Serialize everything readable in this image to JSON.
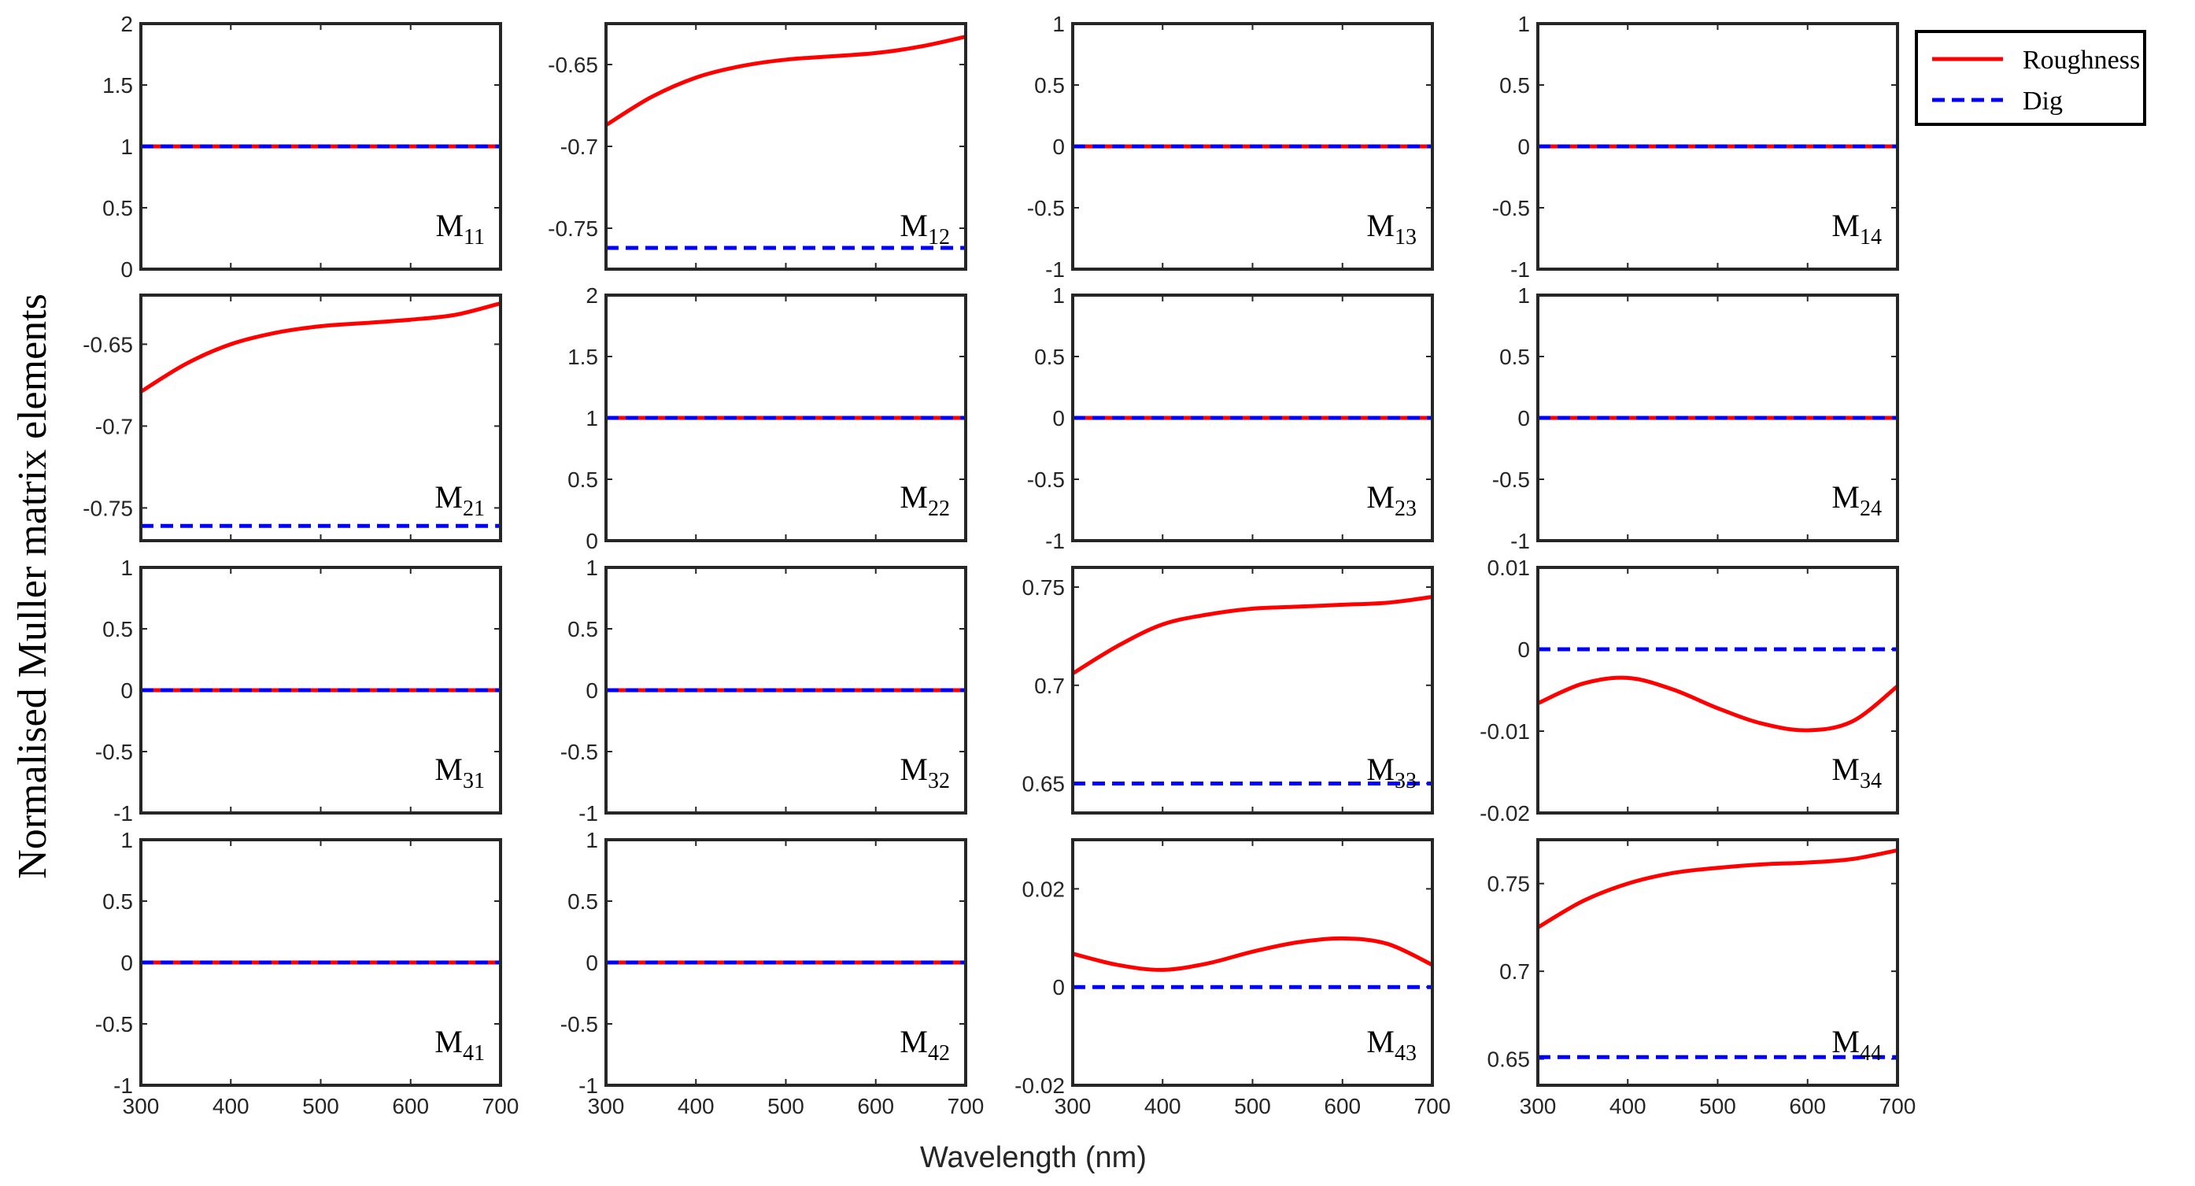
{
  "chart_data": {
    "type": "line",
    "ylabel": "Normalised Muller matrix elements",
    "xlabel": "Wavelength (nm)",
    "xlim": [
      300,
      700
    ],
    "xticks": [
      300,
      400,
      500,
      600,
      700
    ],
    "x": [
      300,
      350,
      400,
      450,
      500,
      550,
      600,
      650,
      700
    ],
    "legend": {
      "position": "top-right-outside",
      "entries": [
        "Roughness",
        "Dig"
      ]
    },
    "series_colors": {
      "Roughness": "#ff0000",
      "Dig": "#0000ff"
    },
    "panels": [
      {
        "label": "M",
        "sub": "11",
        "ylim": [
          0,
          2
        ],
        "yticks": [
          0,
          0.5,
          1,
          1.5,
          2
        ],
        "ytick_labels": [
          "0",
          "0.5",
          "1",
          "1.5",
          "2"
        ],
        "series": [
          {
            "name": "Roughness",
            "values": [
              1,
              1,
              1,
              1,
              1,
              1,
              1,
              1,
              1
            ]
          },
          {
            "name": "Dig",
            "values": [
              1,
              1,
              1,
              1,
              1,
              1,
              1,
              1,
              1
            ]
          }
        ]
      },
      {
        "label": "M",
        "sub": "12",
        "ylim": [
          -0.775,
          -0.625
        ],
        "yticks": [
          -0.75,
          -0.7,
          -0.65
        ],
        "ytick_labels": [
          "-0.75",
          "-0.7",
          "-0.65"
        ],
        "series": [
          {
            "name": "Roughness",
            "values": [
              -0.687,
              -0.67,
              -0.658,
              -0.651,
              -0.647,
              -0.645,
              -0.643,
              -0.639,
              -0.633
            ]
          },
          {
            "name": "Dig",
            "values": [
              -0.762,
              -0.762,
              -0.762,
              -0.762,
              -0.762,
              -0.762,
              -0.762,
              -0.762,
              -0.762
            ]
          }
        ]
      },
      {
        "label": "M",
        "sub": "13",
        "ylim": [
          -1,
          1
        ],
        "yticks": [
          -1,
          -0.5,
          0,
          0.5,
          1
        ],
        "ytick_labels": [
          "-1",
          "-0.5",
          "0",
          "0.5",
          "1"
        ],
        "series": [
          {
            "name": "Roughness",
            "values": [
              0,
              0,
              0,
              0,
              0,
              0,
              0,
              0,
              0
            ]
          },
          {
            "name": "Dig",
            "values": [
              0,
              0,
              0,
              0,
              0,
              0,
              0,
              0,
              0
            ]
          }
        ]
      },
      {
        "label": "M",
        "sub": "14",
        "ylim": [
          -1,
          1
        ],
        "yticks": [
          -1,
          -0.5,
          0,
          0.5,
          1
        ],
        "ytick_labels": [
          "-1",
          "-0.5",
          "0",
          "0.5",
          "1"
        ],
        "series": [
          {
            "name": "Roughness",
            "values": [
              0,
              0,
              0,
              0,
              0,
              0,
              0,
              0,
              0
            ]
          },
          {
            "name": "Dig",
            "values": [
              0,
              0,
              0,
              0,
              0,
              0,
              0,
              0,
              0
            ]
          }
        ]
      },
      {
        "label": "M",
        "sub": "21",
        "ylim": [
          -0.77,
          -0.62
        ],
        "yticks": [
          -0.75,
          -0.7,
          -0.65
        ],
        "ytick_labels": [
          "-0.75",
          "-0.7",
          "-0.65"
        ],
        "series": [
          {
            "name": "Roughness",
            "values": [
              -0.679,
              -0.662,
              -0.65,
              -0.643,
              -0.639,
              -0.637,
              -0.635,
              -0.632,
              -0.625
            ]
          },
          {
            "name": "Dig",
            "values": [
              -0.761,
              -0.761,
              -0.761,
              -0.761,
              -0.761,
              -0.761,
              -0.761,
              -0.761,
              -0.761
            ]
          }
        ]
      },
      {
        "label": "M",
        "sub": "22",
        "ylim": [
          0,
          2
        ],
        "yticks": [
          0,
          0.5,
          1,
          1.5,
          2
        ],
        "ytick_labels": [
          "0",
          "0.5",
          "1",
          "1.5",
          "2"
        ],
        "series": [
          {
            "name": "Roughness",
            "values": [
              1,
              1,
              1,
              1,
              1,
              1,
              1,
              1,
              1
            ]
          },
          {
            "name": "Dig",
            "values": [
              1,
              1,
              1,
              1,
              1,
              1,
              1,
              1,
              1
            ]
          }
        ]
      },
      {
        "label": "M",
        "sub": "23",
        "ylim": [
          -1,
          1
        ],
        "yticks": [
          -1,
          -0.5,
          0,
          0.5,
          1
        ],
        "ytick_labels": [
          "-1",
          "-0.5",
          "0",
          "0.5",
          "1"
        ],
        "series": [
          {
            "name": "Roughness",
            "values": [
              0,
              0,
              0,
              0,
              0,
              0,
              0,
              0,
              0
            ]
          },
          {
            "name": "Dig",
            "values": [
              0,
              0,
              0,
              0,
              0,
              0,
              0,
              0,
              0
            ]
          }
        ]
      },
      {
        "label": "M",
        "sub": "24",
        "ylim": [
          -1,
          1
        ],
        "yticks": [
          -1,
          -0.5,
          0,
          0.5,
          1
        ],
        "ytick_labels": [
          "-1",
          "-0.5",
          "0",
          "0.5",
          "1"
        ],
        "series": [
          {
            "name": "Roughness",
            "values": [
              0,
              0,
              0,
              0,
              0,
              0,
              0,
              0,
              0
            ]
          },
          {
            "name": "Dig",
            "values": [
              0,
              0,
              0,
              0,
              0,
              0,
              0,
              0,
              0
            ]
          }
        ]
      },
      {
        "label": "M",
        "sub": "31",
        "ylim": [
          -1,
          1
        ],
        "yticks": [
          -1,
          -0.5,
          0,
          0.5,
          1
        ],
        "ytick_labels": [
          "-1",
          "-0.5",
          "0",
          "0.5",
          "1"
        ],
        "series": [
          {
            "name": "Roughness",
            "values": [
              0,
              0,
              0,
              0,
              0,
              0,
              0,
              0,
              0
            ]
          },
          {
            "name": "Dig",
            "values": [
              0,
              0,
              0,
              0,
              0,
              0,
              0,
              0,
              0
            ]
          }
        ]
      },
      {
        "label": "M",
        "sub": "32",
        "ylim": [
          -1,
          1
        ],
        "yticks": [
          -1,
          -0.5,
          0,
          0.5,
          1
        ],
        "ytick_labels": [
          "-1",
          "-0.5",
          "0",
          "0.5",
          "1"
        ],
        "series": [
          {
            "name": "Roughness",
            "values": [
              0,
              0,
              0,
              0,
              0,
              0,
              0,
              0,
              0
            ]
          },
          {
            "name": "Dig",
            "values": [
              0,
              0,
              0,
              0,
              0,
              0,
              0,
              0,
              0
            ]
          }
        ]
      },
      {
        "label": "M",
        "sub": "33",
        "ylim": [
          0.635,
          0.76
        ],
        "yticks": [
          0.65,
          0.7,
          0.75
        ],
        "ytick_labels": [
          "0.65",
          "0.7",
          "0.75"
        ],
        "series": [
          {
            "name": "Roughness",
            "values": [
              0.706,
              0.72,
              0.731,
              0.736,
              0.739,
              0.74,
              0.741,
              0.742,
              0.745
            ]
          },
          {
            "name": "Dig",
            "values": [
              0.65,
              0.65,
              0.65,
              0.65,
              0.65,
              0.65,
              0.65,
              0.65,
              0.65
            ]
          }
        ]
      },
      {
        "label": "M",
        "sub": "34",
        "ylim": [
          -0.02,
          0.01
        ],
        "yticks": [
          -0.02,
          -0.01,
          0,
          0.01
        ],
        "ytick_labels": [
          "-0.02",
          "-0.01",
          "0",
          "0.01"
        ],
        "series": [
          {
            "name": "Roughness",
            "values": [
              -0.0066,
              -0.0042,
              -0.0035,
              -0.0049,
              -0.0072,
              -0.0091,
              -0.0099,
              -0.0088,
              -0.0045
            ]
          },
          {
            "name": "Dig",
            "values": [
              0,
              0,
              0,
              0,
              0,
              0,
              0,
              0,
              0
            ]
          }
        ]
      },
      {
        "label": "M",
        "sub": "41",
        "ylim": [
          -1,
          1
        ],
        "yticks": [
          -1,
          -0.5,
          0,
          0.5,
          1
        ],
        "ytick_labels": [
          "-1",
          "-0.5",
          "0",
          "0.5",
          "1"
        ],
        "series": [
          {
            "name": "Roughness",
            "values": [
              0,
              0,
              0,
              0,
              0,
              0,
              0,
              0,
              0
            ]
          },
          {
            "name": "Dig",
            "values": [
              0,
              0,
              0,
              0,
              0,
              0,
              0,
              0,
              0
            ]
          }
        ]
      },
      {
        "label": "M",
        "sub": "42",
        "ylim": [
          -1,
          1
        ],
        "yticks": [
          -1,
          -0.5,
          0,
          0.5,
          1
        ],
        "ytick_labels": [
          "-1",
          "-0.5",
          "0",
          "0.5",
          "1"
        ],
        "series": [
          {
            "name": "Roughness",
            "values": [
              0,
              0,
              0,
              0,
              0,
              0,
              0,
              0,
              0
            ]
          },
          {
            "name": "Dig",
            "values": [
              0,
              0,
              0,
              0,
              0,
              0,
              0,
              0,
              0
            ]
          }
        ]
      },
      {
        "label": "M",
        "sub": "43",
        "ylim": [
          -0.02,
          0.03
        ],
        "yticks": [
          -0.02,
          0,
          0.02
        ],
        "ytick_labels": [
          "-0.02",
          "0",
          "0.02"
        ],
        "series": [
          {
            "name": "Roughness",
            "values": [
              0.0068,
              0.0045,
              0.0035,
              0.0048,
              0.0072,
              0.0091,
              0.0099,
              0.0088,
              0.0045
            ]
          },
          {
            "name": "Dig",
            "values": [
              0,
              0,
              0,
              0,
              0,
              0,
              0,
              0,
              0
            ]
          }
        ]
      },
      {
        "label": "M",
        "sub": "44",
        "ylim": [
          0.635,
          0.775
        ],
        "yticks": [
          0.65,
          0.7,
          0.75
        ],
        "ytick_labels": [
          "0.65",
          "0.7",
          "0.75"
        ],
        "series": [
          {
            "name": "Roughness",
            "values": [
              0.725,
              0.74,
              0.75,
              0.756,
              0.759,
              0.761,
              0.762,
              0.764,
              0.769
            ]
          },
          {
            "name": "Dig",
            "values": [
              0.651,
              0.651,
              0.651,
              0.651,
              0.651,
              0.651,
              0.651,
              0.651,
              0.651
            ]
          }
        ]
      }
    ]
  }
}
